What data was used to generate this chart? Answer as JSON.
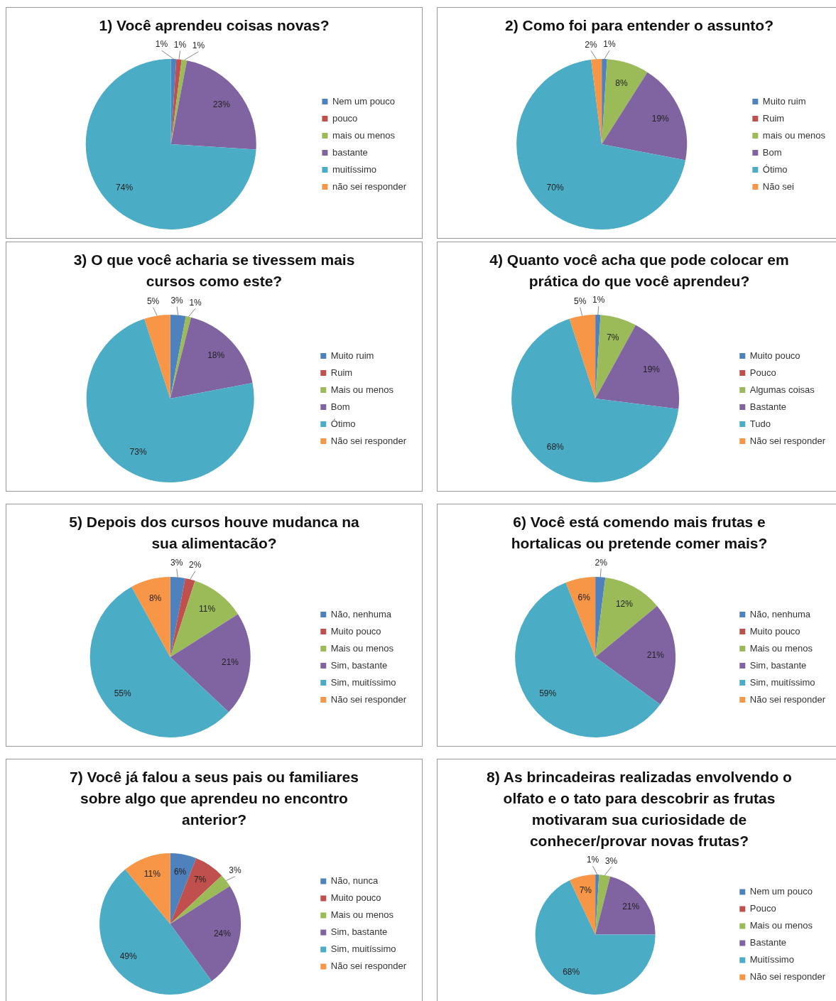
{
  "chart_data": [
    {
      "type": "pie",
      "title": "1) Você aprendeu coisas novas?",
      "categories": [
        "Nem um pouco",
        "pouco",
        "mais ou menos",
        "bastante",
        "muitíssimo",
        "não sei responder"
      ],
      "values": [
        1,
        1,
        1,
        23,
        74,
        0
      ],
      "value_labels": [
        "1%",
        "1%",
        "1%",
        "23%",
        "74%",
        null
      ],
      "colors": [
        "#4f81bd",
        "#c0504d",
        "#9bbb59",
        "#8064a2",
        "#4bacc6",
        "#f79646"
      ],
      "legend": "right"
    },
    {
      "type": "pie",
      "title": "2) Como foi para entender o assunto?",
      "categories": [
        "Muito ruim",
        "Ruim",
        "mais ou menos",
        "Bom",
        "Ótimo",
        "Não sei"
      ],
      "values": [
        1,
        0,
        8,
        19,
        70,
        2
      ],
      "value_labels": [
        "1%",
        null,
        "8%",
        "19%",
        "70%",
        "2%"
      ],
      "colors": [
        "#4f81bd",
        "#c0504d",
        "#9bbb59",
        "#8064a2",
        "#4bacc6",
        "#f79646"
      ],
      "legend": "right"
    },
    {
      "type": "pie",
      "title": "3) O que você acharia se tivessem mais cursos como este?",
      "categories": [
        "Muito ruim",
        "Ruim",
        "Mais ou menos",
        "Bom",
        "Ótimo",
        "Não sei responder"
      ],
      "values": [
        3,
        0,
        1,
        18,
        73,
        5
      ],
      "value_labels": [
        "3%",
        null,
        "1%",
        "18%",
        "73%",
        "5%"
      ],
      "colors": [
        "#4f81bd",
        "#c0504d",
        "#9bbb59",
        "#8064a2",
        "#4bacc6",
        "#f79646"
      ],
      "legend": "right"
    },
    {
      "type": "pie",
      "title": "4) Quanto você acha que pode colocar em prática do que você aprendeu?",
      "categories": [
        "Muito pouco",
        "Pouco",
        "Algumas coisas",
        "Bastante",
        "Tudo",
        "Não sei responder"
      ],
      "values": [
        1,
        0,
        7,
        19,
        68,
        5
      ],
      "value_labels": [
        "1%",
        null,
        "7%",
        "19%",
        "68%",
        "5%"
      ],
      "colors": [
        "#4f81bd",
        "#c0504d",
        "#9bbb59",
        "#8064a2",
        "#4bacc6",
        "#f79646"
      ],
      "legend": "right"
    },
    {
      "type": "pie",
      "title": "5) Depois dos cursos houve mudanca na sua alimentacão?",
      "categories": [
        "Não, nenhuma",
        "Muito pouco",
        "Mais ou menos",
        "Sim, bastante",
        "Sim, muitíssimo",
        "Não sei responder"
      ],
      "values": [
        3,
        2,
        11,
        21,
        55,
        8
      ],
      "value_labels": [
        "3%",
        "2%",
        "11%",
        "21%",
        "55%",
        "8%"
      ],
      "colors": [
        "#4f81bd",
        "#c0504d",
        "#9bbb59",
        "#8064a2",
        "#4bacc6",
        "#f79646"
      ],
      "legend": "right"
    },
    {
      "type": "pie",
      "title": "6) Você está comendo mais frutas e hortalicas ou pretende comer mais?",
      "categories": [
        "Não, nenhuma",
        "Muito pouco",
        "Mais ou menos",
        "Sim, bastante",
        "Sim, muitíssimo",
        "Não sei responder"
      ],
      "values": [
        2,
        0,
        12,
        21,
        59,
        6
      ],
      "value_labels": [
        "2%",
        null,
        "12%",
        "21%",
        "59%",
        "6%"
      ],
      "colors": [
        "#4f81bd",
        "#c0504d",
        "#9bbb59",
        "#8064a2",
        "#4bacc6",
        "#f79646"
      ],
      "legend": "right"
    },
    {
      "type": "pie",
      "title": "7) Você já falou a seus pais ou familiares sobre algo que aprendeu no encontro anterior?",
      "categories": [
        "Não, nunca",
        "Muito pouco",
        "Mais ou menos",
        "Sim, bastante",
        "Sim, muitíssimo",
        "Não sei responder"
      ],
      "values": [
        6,
        7,
        3,
        24,
        49,
        11
      ],
      "value_labels": [
        "6%",
        "7%",
        "3%",
        "24%",
        "49%",
        "11%"
      ],
      "colors": [
        "#4f81bd",
        "#c0504d",
        "#9bbb59",
        "#8064a2",
        "#4bacc6",
        "#f79646"
      ],
      "legend": "right"
    },
    {
      "type": "pie",
      "title": "8) As brincadeiras realizadas envolvendo o olfato e o tato para descobrir as frutas motivaram sua curiosidade de conhecer/provar novas frutas?",
      "categories": [
        "Nem um pouco",
        "Pouco",
        "Mais ou menos",
        "Bastante",
        "Muitíssimo",
        "Não sei responder"
      ],
      "values": [
        1,
        0,
        3,
        21,
        68,
        7
      ],
      "value_labels": [
        "1%",
        null,
        "3%",
        "21%",
        "68%",
        "7%"
      ],
      "colors": [
        "#4f81bd",
        "#c0504d",
        "#9bbb59",
        "#8064a2",
        "#4bacc6",
        "#f79646"
      ],
      "legend": "right"
    }
  ]
}
